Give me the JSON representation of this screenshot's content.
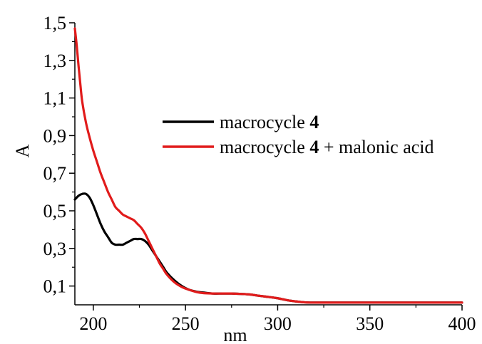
{
  "chart_data": {
    "type": "line",
    "xlabel": "nm",
    "ylabel": "A",
    "xlim": [
      190,
      400
    ],
    "ylim": [
      0,
      1.5
    ],
    "x_ticks": [
      200,
      250,
      300,
      350,
      400
    ],
    "x_tick_labels": [
      "200",
      "250",
      "300",
      "350",
      "400"
    ],
    "y_ticks": [
      0.1,
      0.3,
      0.5,
      0.7,
      0.9,
      1.1,
      1.3,
      1.5
    ],
    "y_tick_labels": [
      "0,1",
      "0,3",
      "0,5",
      "0,7",
      "0,9",
      "1,1",
      "1,3",
      "1,5"
    ],
    "grid": false,
    "legend_position": "upper-right",
    "series": [
      {
        "name": "macrocycle 4",
        "legend_label": {
          "prefix": "macrocycle ",
          "bold": "4",
          "suffix": ""
        },
        "color": "#000000",
        "x": [
          190,
          192,
          194,
          196,
          198,
          200,
          202,
          204,
          206,
          208,
          210,
          212,
          214,
          216,
          218,
          220,
          222,
          224,
          226,
          228,
          230,
          232,
          234,
          236,
          238,
          240,
          244,
          248,
          252,
          256,
          260,
          265,
          270,
          275,
          280,
          285,
          290,
          295,
          300,
          305,
          310,
          315,
          320,
          330,
          340,
          350,
          360,
          370,
          380,
          390,
          400
        ],
        "y": [
          0.56,
          0.58,
          0.59,
          0.59,
          0.57,
          0.53,
          0.48,
          0.43,
          0.39,
          0.36,
          0.33,
          0.32,
          0.32,
          0.32,
          0.33,
          0.34,
          0.35,
          0.35,
          0.35,
          0.34,
          0.32,
          0.29,
          0.26,
          0.23,
          0.2,
          0.17,
          0.13,
          0.1,
          0.08,
          0.07,
          0.065,
          0.06,
          0.06,
          0.06,
          0.058,
          0.055,
          0.048,
          0.042,
          0.035,
          0.025,
          0.018,
          0.013,
          0.012,
          0.012,
          0.012,
          0.012,
          0.012,
          0.012,
          0.012,
          0.012,
          0.012
        ]
      },
      {
        "name": "macrocycle 4 + malonic acid",
        "legend_label": {
          "prefix": "macrocycle ",
          "bold": "4",
          "suffix": " + malonic acid"
        },
        "color": "#e11b1b",
        "x": [
          190,
          191,
          192,
          193,
          194,
          196,
          198,
          200,
          202,
          204,
          206,
          208,
          210,
          212,
          214,
          216,
          218,
          220,
          222,
          224,
          226,
          228,
          230,
          232,
          234,
          236,
          238,
          240,
          244,
          248,
          252,
          256,
          260,
          265,
          270,
          275,
          280,
          285,
          290,
          295,
          300,
          305,
          310,
          315,
          320,
          330,
          340,
          350,
          360,
          370,
          380,
          390,
          400
        ],
        "y": [
          1.47,
          1.38,
          1.27,
          1.17,
          1.08,
          0.97,
          0.89,
          0.82,
          0.76,
          0.7,
          0.65,
          0.6,
          0.56,
          0.52,
          0.5,
          0.48,
          0.47,
          0.46,
          0.45,
          0.43,
          0.41,
          0.38,
          0.34,
          0.3,
          0.26,
          0.22,
          0.19,
          0.16,
          0.12,
          0.095,
          0.08,
          0.068,
          0.062,
          0.06,
          0.06,
          0.06,
          0.058,
          0.055,
          0.048,
          0.042,
          0.035,
          0.025,
          0.018,
          0.013,
          0.012,
          0.012,
          0.012,
          0.012,
          0.012,
          0.012,
          0.012,
          0.012,
          0.012
        ]
      }
    ]
  }
}
